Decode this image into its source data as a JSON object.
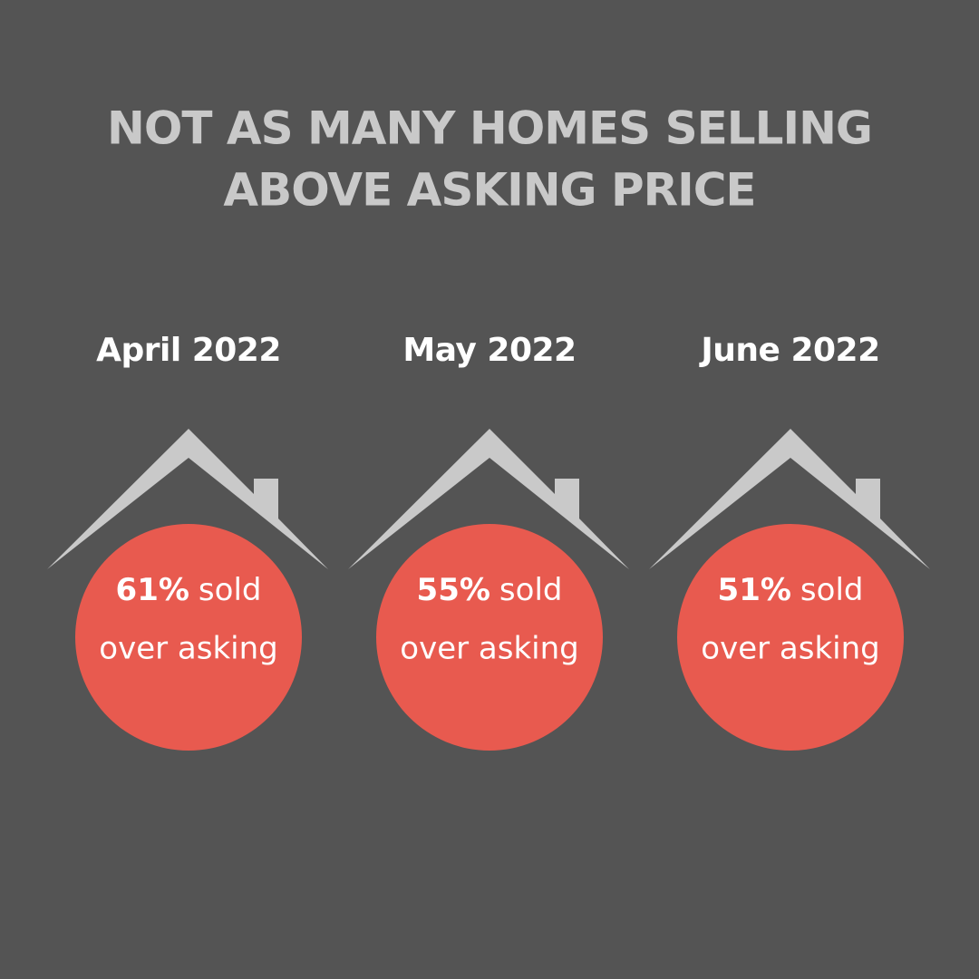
{
  "title": [
    "NOT AS MANY HOMES SELLING",
    "ABOVE ASKING PRICE"
  ],
  "items": [
    {
      "label": "April 2022",
      "value": "61%",
      "text_1": "sold",
      "text_2": "over asking"
    },
    {
      "label": "May 2022",
      "value": "55%",
      "text_1": "sold",
      "text_2": "over asking"
    },
    {
      "label": "June 2022",
      "value": "51%",
      "text_1": "sold",
      "text_2": "over asking"
    }
  ]
}
